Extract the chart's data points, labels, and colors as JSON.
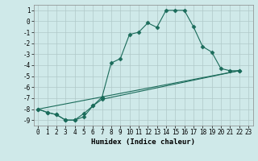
{
  "xlabel": "Humidex (Indice chaleur)",
  "bg_color": "#cfe9e9",
  "grid_color": "#b0c8c8",
  "line_color": "#1a6b5a",
  "xlim": [
    -0.5,
    23.5
  ],
  "ylim": [
    -9.5,
    1.5
  ],
  "yticks": [
    1,
    0,
    -1,
    -2,
    -3,
    -4,
    -5,
    -6,
    -7,
    -8,
    -9
  ],
  "xticks": [
    0,
    1,
    2,
    3,
    4,
    5,
    6,
    7,
    8,
    9,
    10,
    11,
    12,
    13,
    14,
    15,
    16,
    17,
    18,
    19,
    20,
    21,
    22,
    23
  ],
  "line1_x": [
    0,
    1,
    2,
    3,
    4,
    5,
    6,
    7,
    8,
    9,
    10,
    11,
    12,
    13,
    14,
    15,
    16,
    17,
    18,
    19,
    20,
    21,
    22
  ],
  "line1_y": [
    -8.0,
    -8.3,
    -8.5,
    -9.0,
    -9.0,
    -8.7,
    -7.7,
    -6.9,
    -3.8,
    -3.4,
    -1.2,
    -1.0,
    -0.15,
    -0.55,
    1.0,
    1.0,
    1.0,
    -0.5,
    -2.3,
    -2.8,
    -4.3,
    -4.5,
    -4.5
  ],
  "line2_x": [
    0,
    1,
    2,
    3,
    4,
    5,
    6,
    7,
    22
  ],
  "line2_y": [
    -8.0,
    -8.3,
    -8.5,
    -9.0,
    -9.0,
    -8.4,
    -7.7,
    -7.1,
    -4.5
  ],
  "line3_x": [
    0,
    22
  ],
  "line3_y": [
    -8.0,
    -4.5
  ],
  "xlabel_fontsize": 6.5,
  "tick_fontsize": 5.5
}
